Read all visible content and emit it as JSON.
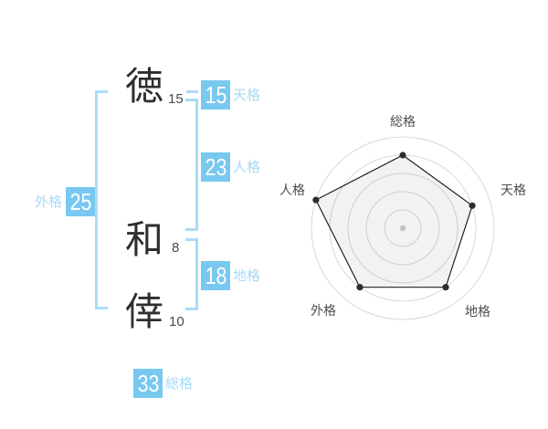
{
  "name_display": {
    "characters": [
      {
        "char": "徳",
        "strokes": "15"
      },
      {
        "char": "和",
        "strokes": "8"
      },
      {
        "char": "倖",
        "strokes": "10"
      }
    ]
  },
  "gokaku": {
    "tenkaku": {
      "value": "15",
      "label": "天格"
    },
    "jinkaku": {
      "value": "23",
      "label": "人格"
    },
    "chikaku": {
      "value": "18",
      "label": "地格"
    },
    "gaikaku": {
      "value": "25",
      "label": "外格"
    },
    "soukaku": {
      "value": "33",
      "label": "総格"
    }
  },
  "colors": {
    "box_blue": "#79c8f0",
    "line_blue": "#aadcf6",
    "label_blue": "#a6dbf7",
    "text_dark": "#2e2e2e",
    "grid_gray": "#d9d9d9",
    "polygon_stroke": "#222222",
    "dot_dark": "#2e2e2e",
    "center_dot": "#c2c2c2"
  },
  "chart_data": {
    "type": "radar",
    "categories": [
      "総格",
      "天格",
      "地格",
      "外格",
      "人格"
    ],
    "values": [
      4,
      4,
      4,
      4,
      5
    ],
    "max": 5,
    "rings": 5,
    "grid": "circular",
    "start_angle_deg": -90,
    "legend": false,
    "title": ""
  }
}
